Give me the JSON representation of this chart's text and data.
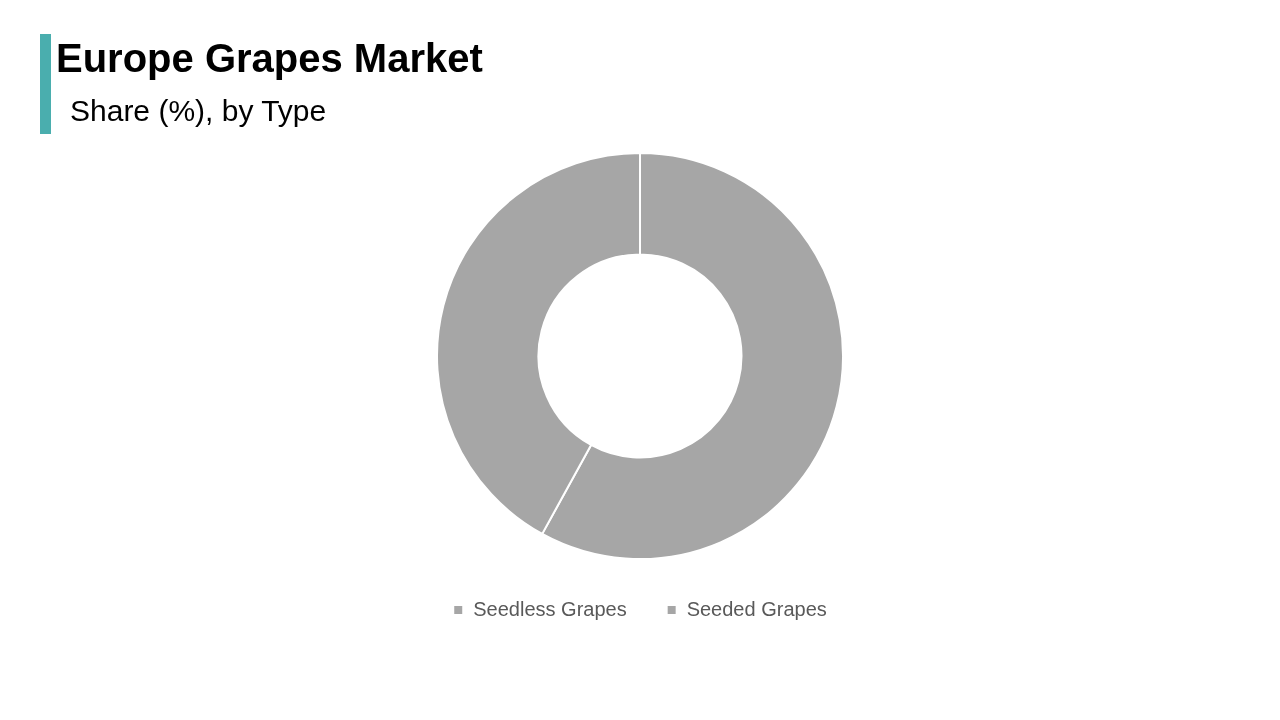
{
  "chart_data": {
    "type": "donut",
    "title": "Europe Grapes Market",
    "subtitle": "Share (%), by Type",
    "categories": [
      "Seedless Grapes",
      "Seeded Grapes"
    ],
    "values": [
      58,
      42
    ],
    "colors": [
      "#a6a6a6",
      "#a6a6a6"
    ],
    "legend": "bottom"
  }
}
